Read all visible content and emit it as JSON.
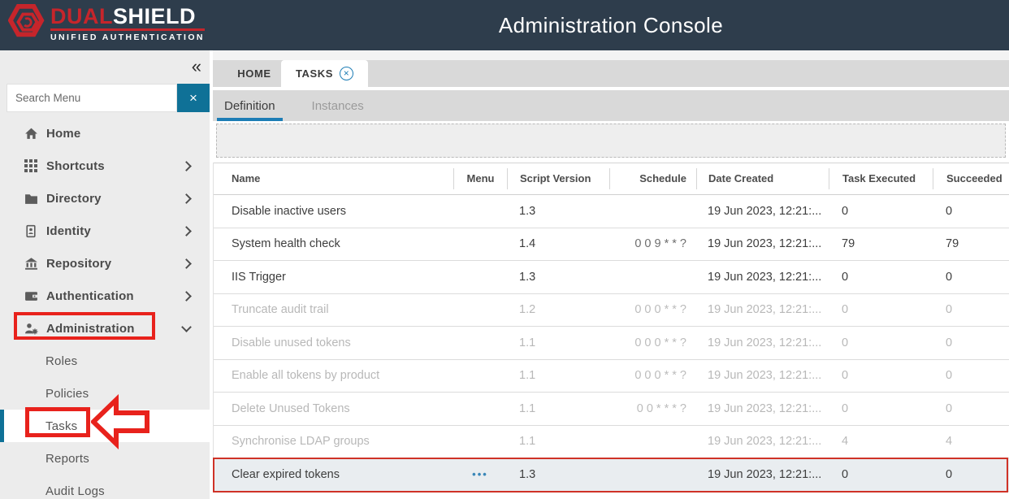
{
  "colors": {
    "header_bg": "#2e3d4c",
    "brand_red": "#c6252b",
    "accent_blue": "#1d7db5",
    "teal_button": "#0f7197",
    "annotation_red": "#e8221c",
    "selected_row_border": "#cf3227"
  },
  "header": {
    "logo": {
      "brand_primary": "DUAL",
      "brand_secondary": "SHIELD",
      "tagline": "UNIFIED AUTHENTICATION",
      "icon": "dualshield-hexagon-icon"
    },
    "title": "Administration Console"
  },
  "sidebar": {
    "collapse_icon": "«",
    "search": {
      "placeholder": "Search Menu",
      "value": "",
      "clear_label": "×"
    },
    "items": [
      {
        "label": "Home",
        "icon": "home-icon",
        "chevron": "none",
        "level": 1
      },
      {
        "label": "Shortcuts",
        "icon": "shortcuts-grid-icon",
        "chevron": "right",
        "level": 1
      },
      {
        "label": "Directory",
        "icon": "folder-icon",
        "chevron": "right",
        "level": 1
      },
      {
        "label": "Identity",
        "icon": "id-card-icon",
        "chevron": "right",
        "level": 1
      },
      {
        "label": "Repository",
        "icon": "bank-icon",
        "chevron": "right",
        "level": 1
      },
      {
        "label": "Authentication",
        "icon": "wallet-icon",
        "chevron": "right",
        "level": 1
      },
      {
        "label": "Administration",
        "icon": "user-gear-icon",
        "chevron": "down",
        "level": 1,
        "annotated": true
      },
      {
        "label": "Roles",
        "level": 2
      },
      {
        "label": "Policies",
        "level": 2
      },
      {
        "label": "Tasks",
        "level": 2,
        "selected": true,
        "annotated": true,
        "arrow": true
      },
      {
        "label": "Reports",
        "level": 2
      },
      {
        "label": "Audit Logs",
        "level": 2
      }
    ]
  },
  "main": {
    "tabs": [
      {
        "label": "HOME",
        "active": false
      },
      {
        "label": "TASKS",
        "active": true,
        "closable": true,
        "close_icon": "×"
      }
    ],
    "subtabs": [
      {
        "label": "Definition",
        "active": true
      },
      {
        "label": "Instances",
        "active": false
      }
    ],
    "table": {
      "columns": [
        "Name",
        "Menu",
        "Script Version",
        "Schedule",
        "Date Created",
        "Task Executed",
        "Succeeded"
      ],
      "menu_dots": "•••",
      "rows": [
        {
          "name": "Disable inactive users",
          "menu": "",
          "script_version": "1.3",
          "schedule": "",
          "date_created": "19 Jun 2023, 12:21:...",
          "task_executed": "0",
          "succeeded": "0",
          "state": "normal"
        },
        {
          "name": "System health check",
          "menu": "",
          "script_version": "1.4",
          "schedule": "0 0 9 * * ?",
          "date_created": "19 Jun 2023, 12:21:...",
          "task_executed": "79",
          "succeeded": "79",
          "state": "normal"
        },
        {
          "name": "IIS Trigger",
          "menu": "",
          "script_version": "1.3",
          "schedule": "",
          "date_created": "19 Jun 2023, 12:21:...",
          "task_executed": "0",
          "succeeded": "0",
          "state": "normal"
        },
        {
          "name": "Truncate audit trail",
          "menu": "",
          "script_version": "1.2",
          "schedule": "0 0 0 * * ?",
          "date_created": "19 Jun 2023, 12:21:...",
          "task_executed": "0",
          "succeeded": "0",
          "state": "disabled"
        },
        {
          "name": "Disable unused tokens",
          "menu": "",
          "script_version": "1.1",
          "schedule": "0 0 0 * * ?",
          "date_created": "19 Jun 2023, 12:21:...",
          "task_executed": "0",
          "succeeded": "0",
          "state": "disabled"
        },
        {
          "name": "Enable all tokens by product",
          "menu": "",
          "script_version": "1.1",
          "schedule": "0 0 0 * * ?",
          "date_created": "19 Jun 2023, 12:21:...",
          "task_executed": "0",
          "succeeded": "0",
          "state": "disabled"
        },
        {
          "name": "Delete Unused Tokens",
          "menu": "",
          "script_version": "1.1",
          "schedule": "0 0 * * * ?",
          "date_created": "19 Jun 2023, 12:21:...",
          "task_executed": "0",
          "succeeded": "0",
          "state": "disabled"
        },
        {
          "name": "Synchronise LDAP groups",
          "menu": "",
          "script_version": "1.1",
          "schedule": "",
          "date_created": "19 Jun 2023, 12:21:...",
          "task_executed": "4",
          "succeeded": "4",
          "state": "disabled"
        },
        {
          "name": "Clear expired tokens",
          "menu": "•••",
          "script_version": "1.3",
          "schedule": "",
          "date_created": "19 Jun 2023, 12:21:...",
          "task_executed": "0",
          "succeeded": "0",
          "state": "selected"
        }
      ]
    }
  }
}
